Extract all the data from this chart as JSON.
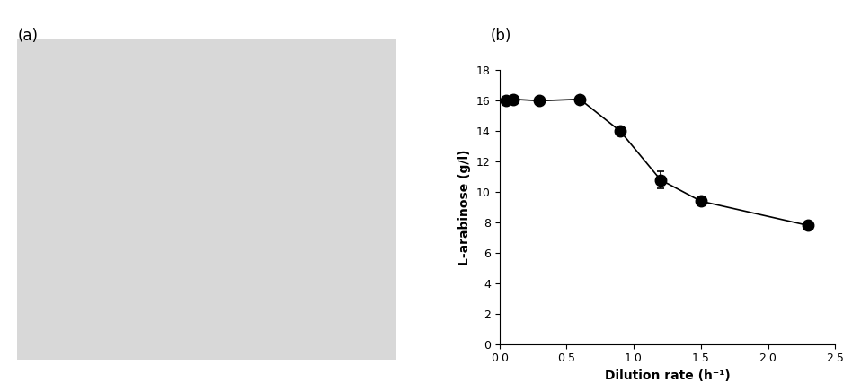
{
  "panel_a_label": "(a)",
  "panel_b_label": "(b)",
  "x_data": [
    0.05,
    0.1,
    0.3,
    0.6,
    0.9,
    1.2,
    1.5,
    2.3
  ],
  "y_data": [
    16.0,
    16.1,
    16.0,
    16.1,
    14.0,
    10.8,
    9.4,
    7.8
  ],
  "y_err": [
    0.0,
    0.0,
    0.0,
    0.0,
    0.0,
    0.55,
    0.2,
    0.0
  ],
  "xlabel": "Dilution rate (h⁻¹)",
  "ylabel": "L-arabinose (g/l)",
  "xlim": [
    0.0,
    2.5
  ],
  "ylim": [
    0,
    18
  ],
  "xticks": [
    0.0,
    0.5,
    1.0,
    1.5,
    2.0,
    2.5
  ],
  "yticks": [
    0,
    2,
    4,
    6,
    8,
    10,
    12,
    14,
    16,
    18
  ],
  "marker_color": "black",
  "marker_size": 9,
  "line_color": "black",
  "line_width": 1.2,
  "label_fontsize": 10,
  "tick_fontsize": 9,
  "panel_label_fontsize": 12
}
